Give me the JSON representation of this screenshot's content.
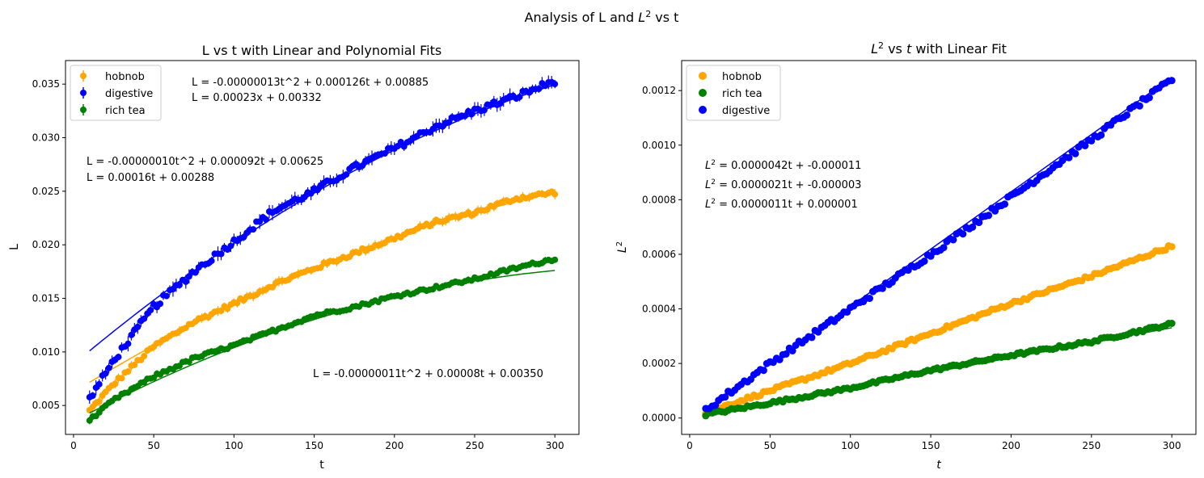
{
  "figure": {
    "suptitle_main": "Analysis of L and ",
    "suptitle_sym": "L",
    "suptitle_sup": "2",
    "suptitle_end": " vs t"
  },
  "colors": {
    "hobnob": "#ffa500",
    "digestive": "#0000ff",
    "rich_tea": "#008000"
  },
  "chart_data": [
    {
      "type": "scatter",
      "title": "L vs t with Linear and Polynomial Fits",
      "xlabel": "t",
      "ylabel": "L",
      "xlim": [
        -5,
        315
      ],
      "ylim": [
        0.0023,
        0.0372
      ],
      "xticks": [
        0,
        50,
        100,
        150,
        200,
        250,
        300
      ],
      "yticks": [
        0.005,
        0.01,
        0.015,
        0.02,
        0.025,
        0.03,
        0.035
      ],
      "ytick_labels": [
        "0.005",
        "0.010",
        "0.015",
        "0.020",
        "0.025",
        "0.030",
        "0.035"
      ],
      "error_bars": true,
      "legend_position": "upper left",
      "legend": [
        "hobnob",
        "digestive",
        "rich tea"
      ],
      "x_range": [
        10,
        300
      ],
      "series": [
        {
          "name": "hobnob",
          "key": "hobnob",
          "color": "#ffa500",
          "poly": [
            -1e-07,
            9.2e-05,
            0.00625
          ],
          "noise": 0.0002,
          "values": [
            [
              10,
              0.0045
            ],
            [
              25,
              0.007
            ],
            [
              50,
              0.0105
            ],
            [
              75,
              0.0128
            ],
            [
              100,
              0.0145
            ],
            [
              125,
              0.0163
            ],
            [
              150,
              0.0178
            ],
            [
              175,
              0.0192
            ],
            [
              200,
              0.0206
            ],
            [
              225,
              0.0221
            ],
            [
              250,
              0.023
            ],
            [
              275,
              0.0243
            ],
            [
              300,
              0.0249
            ]
          ]
        },
        {
          "name": "digestive",
          "key": "digestive",
          "color": "#0000ff",
          "poly": [
            -1.3e-07,
            0.000126,
            0.00885
          ],
          "noise": 0.0003,
          "values": [
            [
              10,
              0.0056
            ],
            [
              25,
              0.0092
            ],
            [
              50,
              0.0142
            ],
            [
              75,
              0.0175
            ],
            [
              100,
              0.0203
            ],
            [
              125,
              0.0232
            ],
            [
              150,
              0.025
            ],
            [
              175,
              0.0272
            ],
            [
              200,
              0.029
            ],
            [
              225,
              0.031
            ],
            [
              250,
              0.0325
            ],
            [
              275,
              0.0338
            ],
            [
              300,
              0.0353
            ]
          ]
        },
        {
          "name": "rich tea",
          "key": "rich_tea",
          "color": "#008000",
          "poly": [
            -1.1e-07,
            8e-05,
            0.0035
          ],
          "noise": 0.00015,
          "values": [
            [
              10,
              0.0036
            ],
            [
              25,
              0.0055
            ],
            [
              50,
              0.0077
            ],
            [
              75,
              0.0094
            ],
            [
              100,
              0.0106
            ],
            [
              125,
              0.012
            ],
            [
              150,
              0.0134
            ],
            [
              175,
              0.0142
            ],
            [
              200,
              0.0152
            ],
            [
              225,
              0.016
            ],
            [
              250,
              0.0168
            ],
            [
              275,
              0.0178
            ],
            [
              300,
              0.0187
            ]
          ]
        }
      ],
      "annotations": [
        {
          "text": "L = -0.00000013t^2 + 0.000126t + 0.00885",
          "color": "#0000ff"
        },
        {
          "text": "L = 0.00023x + 0.00332",
          "color": "#0000ff"
        },
        {
          "text": "L = -0.00000010t^2 + 0.000092t + 0.00625",
          "color": "#ffa500"
        },
        {
          "text": "L = 0.00016t + 0.00288",
          "color": "#ffa500"
        },
        {
          "text": "L = -0.00000011t^2 + 0.00008t + 0.00350",
          "color": "#008000"
        }
      ]
    },
    {
      "type": "scatter",
      "title_sym": "L",
      "title_sup": "2",
      "title_mid": " vs ",
      "title_t": "t",
      "title_end": " with Linear Fit",
      "xlabel": "t",
      "ylabel_sym": "L",
      "ylabel_sup": "2",
      "xlim": [
        -5,
        315
      ],
      "ylim": [
        -6e-05,
        0.00131
      ],
      "xticks": [
        0,
        50,
        100,
        150,
        200,
        250,
        300
      ],
      "yticks": [
        0.0,
        0.0002,
        0.0004,
        0.0006,
        0.0008,
        0.001,
        0.0012
      ],
      "ytick_labels": [
        "0.0000",
        "0.0002",
        "0.0004",
        "0.0006",
        "0.0008",
        "0.0010",
        "0.0012"
      ],
      "legend_position": "upper left",
      "legend": [
        "hobnob",
        "rich tea",
        "digestive"
      ],
      "x_range": [
        10,
        300
      ],
      "series": [
        {
          "name": "hobnob",
          "key": "hobnob",
          "color": "#ffa500",
          "noise": 6e-06,
          "values": [
            [
              10,
              2e-05
            ],
            [
              50,
              0.0001
            ],
            [
              100,
              0.0002
            ],
            [
              150,
              0.00031
            ],
            [
              200,
              0.00042
            ],
            [
              250,
              0.00052
            ],
            [
              300,
              0.00063
            ]
          ]
        },
        {
          "name": "rich tea",
          "key": "rich_tea",
          "color": "#008000",
          "noise": 5e-06,
          "values": [
            [
              10,
              1.3e-05
            ],
            [
              50,
              5.5e-05
            ],
            [
              100,
              0.00011
            ],
            [
              150,
              0.000175
            ],
            [
              200,
              0.00023
            ],
            [
              250,
              0.00028
            ],
            [
              300,
              0.000345
            ]
          ]
        },
        {
          "name": "digestive",
          "key": "digestive",
          "color": "#0000ff",
          "noise": 1e-05,
          "values": [
            [
              10,
              3e-05
            ],
            [
              50,
              0.0002
            ],
            [
              100,
              0.0004
            ],
            [
              150,
              0.0006
            ],
            [
              200,
              0.00081
            ],
            [
              250,
              0.00102
            ],
            [
              300,
              0.00124
            ]
          ]
        }
      ],
      "fit_lines": [
        {
          "key": "digestive",
          "color": "#0000ff",
          "slope": 4.2e-06,
          "intercept": -1.1e-05
        },
        {
          "key": "hobnob",
          "color": "#ffa500",
          "slope": 2.1e-06,
          "intercept": -3e-06
        },
        {
          "key": "rich_tea",
          "color": "#008000",
          "slope": 1.1e-06,
          "intercept": 1e-06
        }
      ],
      "annotations": [
        {
          "sym": "L",
          "sup": "2",
          "rest": " = 0.0000042t + -0.000011",
          "color": "#0000ff"
        },
        {
          "sym": "L",
          "sup": "2",
          "rest": " = 0.0000021t + -0.000003",
          "color": "#ffa500"
        },
        {
          "sym": "L",
          "sup": "2",
          "rest": " = 0.0000011t + 0.000001",
          "color": "#008000"
        }
      ]
    }
  ]
}
